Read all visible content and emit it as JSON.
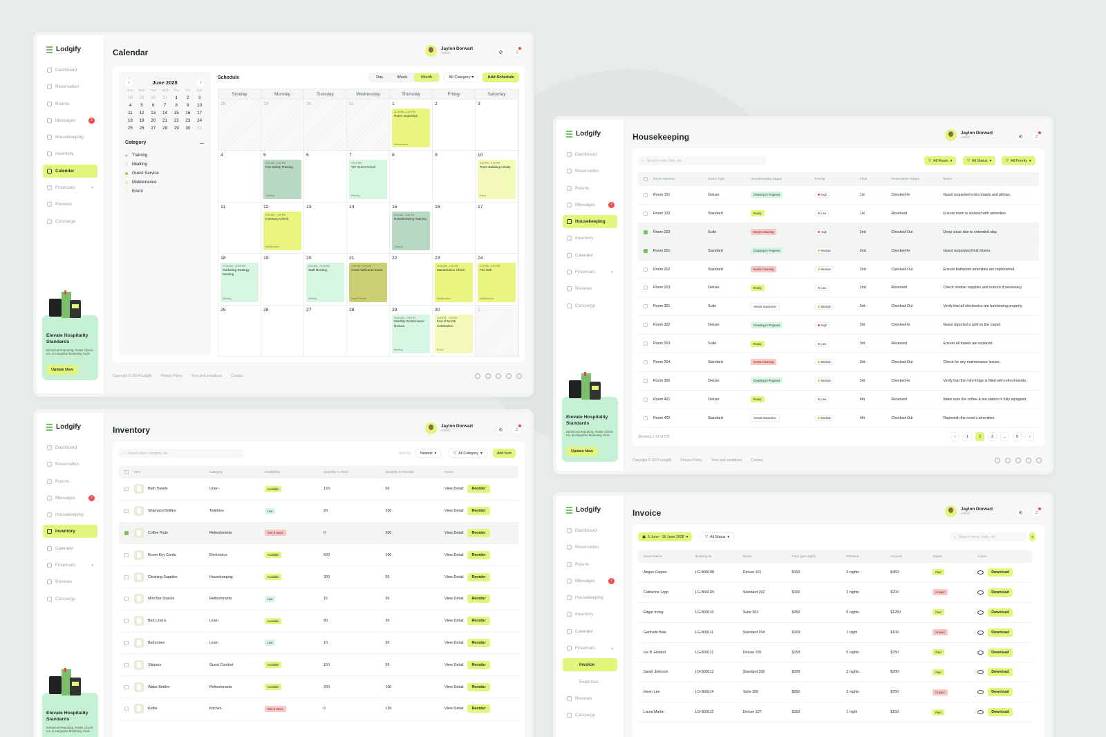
{
  "brand": "Lodgify",
  "user": {
    "name": "Jaylon Dorwart",
    "role": "Admin"
  },
  "nav": {
    "dashboard": "Dashboard",
    "reservation": "Reservation",
    "rooms": "Rooms",
    "messages": "Messages",
    "messages_badge": "2",
    "housekeeping": "Housekeeping",
    "inventory": "Inventory",
    "calendar": "Calendar",
    "financials": "Financials",
    "invoice": "Invoice",
    "expenses": "Expenses",
    "reviews": "Reviews",
    "concierge": "Concierge"
  },
  "promo": {
    "title": "Elevate Hospitality Standards",
    "text": "Enhanced Reporting, Faster Check-Ins, & Integrated Marketing Tools",
    "button": "Update Now"
  },
  "footer": {
    "copyright": "Copyright © 2024 Lodgify",
    "privacy": "Privacy Policy",
    "terms": "Term and conditions",
    "contact": "Contact"
  },
  "calendar": {
    "title": "Calendar",
    "mini": {
      "month": "June 2028",
      "dow": [
        "Sun",
        "Mon",
        "Tue",
        "Wed",
        "Thu",
        "Fri",
        "Sat"
      ],
      "weeks": [
        [
          "28",
          "29",
          "30",
          "31",
          "1",
          "2",
          "3"
        ],
        [
          "4",
          "5",
          "6",
          "7",
          "8",
          "9",
          "10"
        ],
        [
          "11",
          "12",
          "13",
          "14",
          "15",
          "16",
          "17"
        ],
        [
          "18",
          "19",
          "20",
          "21",
          "22",
          "23",
          "24"
        ],
        [
          "25",
          "26",
          "27",
          "28",
          "29",
          "30",
          "01"
        ]
      ]
    },
    "category_title": "Category",
    "more": "...",
    "categories": [
      {
        "name": "Training",
        "color": "#b8d8c4"
      },
      {
        "name": "Meeting",
        "color": "#d6f6e3"
      },
      {
        "name": "Guest Service",
        "color": "#a9c84f"
      },
      {
        "name": "Maintenance",
        "color": "#e4f57d"
      },
      {
        "name": "Event",
        "color": "#f3fab9"
      }
    ],
    "schedule_title": "Schedule",
    "views": [
      "Day",
      "Week",
      "Month"
    ],
    "filter": "All Category",
    "add": "Add Schedule",
    "days": [
      "Sunday",
      "Monday",
      "Tuesday",
      "Wednesday",
      "Thursday",
      "Friday",
      "Saturday"
    ],
    "cells": [
      "28",
      "29",
      "30",
      "31",
      "1",
      "2",
      "3",
      "4",
      "5",
      "6",
      "7",
      "8",
      "9",
      "10",
      "11",
      "12",
      "13",
      "14",
      "15",
      "16",
      "17",
      "18",
      "19",
      "20",
      "21",
      "22",
      "23",
      "24",
      "25",
      "26",
      "27",
      "28",
      "29",
      "30",
      "1"
    ],
    "events": {
      "e4": {
        "time": "11:00 AM - 3:00 PM",
        "title": "Room Inspection",
        "tag": "Maintenance"
      },
      "e8": {
        "time": "9:00 AM - 4:00 PM",
        "title": "Fire Safety Training",
        "tag": "Training"
      },
      "e10": {
        "time": "12:00 PM",
        "title": "VIP Guest Arrival",
        "tag": "Meeting"
      },
      "e13": {
        "time": "3:00 PM - 9:00 PM",
        "title": "Team Building Activity",
        "tag": "Event"
      },
      "e15": {
        "time": "9:00 AM - 1:00 PM",
        "title": "Inventory Check",
        "tag": "Maintenance"
      },
      "e18": {
        "time": "9:00 AM - 3:00 PM",
        "title": "Housekeeping Training",
        "tag": "Training"
      },
      "e21": {
        "time": "10:00 AM - 12:00 PM",
        "title": "Marketing Strategy Meeting",
        "tag": "Meeting"
      },
      "e23": {
        "time": "9:00 AM - 10:00 AM",
        "title": "Staff Meeting",
        "tag": "Meeting"
      },
      "e24": {
        "time": "1:00 PM - 8:00 PM",
        "title": "Guest Welcome Event",
        "tag": "Guest Service"
      },
      "e26": {
        "time": "11:00 AM - 1:00 PM",
        "title": "Maintenance Check",
        "tag": "Maintenance"
      },
      "e27": {
        "time": "2:00 PM - 3:00 PM",
        "title": "Fire Drill",
        "tag": "Maintenance"
      },
      "e32": {
        "time": "11:00 AM - 1:00 PM",
        "title": "Monthly Performance Review",
        "tag": "Meeting"
      },
      "e33": {
        "time": "4:00 PM - 7:00 PM",
        "title": "End of Month Celebration",
        "tag": "Event"
      }
    }
  },
  "housekeeping": {
    "title": "Housekeeping",
    "search": "Search room, floor, etc",
    "filters": [
      "All Room",
      "All Status",
      "All Priority"
    ],
    "cols": [
      "Room Number",
      "Room Type",
      "Housekeeping Status",
      "Priority",
      "Floor",
      "Reservation Status",
      "Notes"
    ],
    "rows": [
      [
        "Room 101",
        "Deluxe",
        "Cleaning in Progress",
        "High",
        "1st",
        "Checked-In",
        "Guest requested extra towels and pillows."
      ],
      [
        "Room 102",
        "Standard",
        "Ready",
        "Low",
        "1st",
        "Reserved",
        "Ensure room is stocked with amenities."
      ],
      [
        "Room 103",
        "Suite",
        "Needs Cleaning",
        "High",
        "2nd",
        "Checked-Out",
        "Deep clean due to extended stay."
      ],
      [
        "Room 201",
        "Standard",
        "Cleaning in Progress",
        "Medium",
        "2nd",
        "Checked-In",
        "Guest requested fresh linens."
      ],
      [
        "Room 202",
        "Standard",
        "Needs Cleaning",
        "Medium",
        "2nd",
        "Checked-Out",
        "Ensure bathroom amenities are replenished."
      ],
      [
        "Room 203",
        "Deluxe",
        "Ready",
        "Low",
        "2nd",
        "Reserved",
        "Check minibar supplies and restock if necessary."
      ],
      [
        "Room 301",
        "Suite",
        "Needs Inspection",
        "Medium",
        "3rd",
        "Checked-Out",
        "Verify that all electronics are functioning properly."
      ],
      [
        "Room 302",
        "Deluxe",
        "Cleaning in Progress",
        "High",
        "3rd",
        "Checked-In",
        "Guest reported a spill on the carpet."
      ],
      [
        "Room 303",
        "Suite",
        "Ready",
        "Low",
        "3rd",
        "Reserved",
        "Ensure all towels are replaced."
      ],
      [
        "Room 304",
        "Standard",
        "Needs Cleaning",
        "Medium",
        "3rd",
        "Checked-Out",
        "Check for any maintenance issues."
      ],
      [
        "Room 305",
        "Deluxe",
        "Cleaning in Progress",
        "Medium",
        "3rd",
        "Checked-In",
        "Verify that the mini-fridge is filled with refreshments."
      ],
      [
        "Room 401",
        "Deluxe",
        "Ready",
        "Low",
        "4th",
        "Reserved",
        "Make sure the coffee & tea station is fully equipped."
      ],
      [
        "Room 402",
        "Standard",
        "Needs Inspection",
        "Medium",
        "4th",
        "Checked-Out",
        "Replenish the room's amenities."
      ]
    ],
    "showing": "Showing 1-13 of 535",
    "pages": [
      "1",
      "2",
      "3",
      "...",
      "8"
    ]
  },
  "inventory": {
    "title": "Inventory",
    "search": "Search item, category, etc",
    "sort_label": "Sort by:",
    "sort": "Newest",
    "filter": "All Category",
    "add": "Add Item",
    "cols": [
      "Item",
      "Category",
      "Availability",
      "Quantity in Stock",
      "Quantity in Reorder",
      "Action"
    ],
    "view": "View Detail",
    "reorder": "Reorder",
    "rows": [
      [
        "Bath Towels",
        "Linen",
        "Available",
        "120",
        "50"
      ],
      [
        "Shampoo Bottles",
        "Toiletries",
        "Low",
        "20",
        "100"
      ],
      [
        "Coffee Pods",
        "Refreshments",
        "Out of Stock",
        "0",
        "200"
      ],
      [
        "Room Key Cards",
        "Electronics",
        "Available",
        "500",
        "100"
      ],
      [
        "Cleaning Supplies",
        "Housekeeping",
        "Available",
        "300",
        "50"
      ],
      [
        "Mini Bar Snacks",
        "Refreshments",
        "Low",
        "15",
        "50"
      ],
      [
        "Bed Linens",
        "Linen",
        "Available",
        "80",
        "30"
      ],
      [
        "Bathrobes",
        "Linen",
        "Low",
        "10",
        "50"
      ],
      [
        "Slippers",
        "Guest Comfort",
        "Available",
        "150",
        "50"
      ],
      [
        "Water Bottles",
        "Refreshments",
        "Available",
        "200",
        "100"
      ],
      [
        "Kettle",
        "Kitchen",
        "Out of Stock",
        "0",
        "130"
      ]
    ]
  },
  "invoice": {
    "title": "Invoice",
    "date_range": "5 June - 16 June 2028",
    "status_filter": "All Status",
    "search": "Search name, room, etc",
    "cols": [
      "Guest Name",
      "Booking ID",
      "Room",
      "Price (per night)",
      "Duration",
      "Amount",
      "Status",
      "Action"
    ],
    "download": "Download",
    "rows": [
      [
        "Angus Copper",
        "LG-B00108",
        "Deluxe 101",
        "$150",
        "3 nights",
        "$450",
        "Paid"
      ],
      [
        "Catherine Lopp",
        "LG-B00109",
        "Standard 202",
        "$100",
        "2 nights",
        "$200",
        "Unpaid"
      ],
      [
        "Edgar Irving",
        "LG-B00110",
        "Suite 303",
        "$250",
        "5 nights",
        "$1250",
        "Paid"
      ],
      [
        "Gertrude Bale",
        "LG-B00111",
        "Standard 204",
        "$100",
        "1 night",
        "$100",
        "Unpaid"
      ],
      [
        "Ice B. Holand",
        "LG-B00112",
        "Deluxe 105",
        "$150",
        "5 nights",
        "$750",
        "Paid"
      ],
      [
        "Sarah Johnson",
        "LG-B00113",
        "Standard 305",
        "$100",
        "2 nights",
        "$200",
        "Paid"
      ],
      [
        "Kevin Lee",
        "LG-B00114",
        "Suite 306",
        "$250",
        "3 nights",
        "$750",
        "Unpaid"
      ],
      [
        "Laura Martin",
        "LG-B00115",
        "Deluxe 107",
        "$150",
        "1 night",
        "$150",
        "Paid"
      ]
    ]
  }
}
